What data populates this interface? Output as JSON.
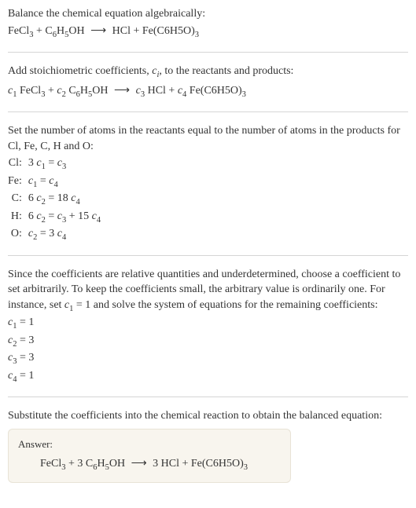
{
  "section1": {
    "title": "Balance the chemical equation algebraically:",
    "eq_left1": "FeCl",
    "eq_sub1": "3",
    "eq_plus1": " + C",
    "eq_sub2": "6",
    "eq_h": "H",
    "eq_sub3": "5",
    "eq_oh": "OH ",
    "arrow": "⟶",
    "eq_right1": " HCl + Fe(C6H5O)",
    "eq_sub4": "3"
  },
  "section2": {
    "text_a": "Add stoichiometric coefficients, ",
    "ci": "c",
    "ci_sub": "i",
    "text_b": ", to the reactants and products:",
    "c1": "c",
    "s1": "1",
    "fecl": " FeCl",
    "fecl_sub": "3",
    "plus1": " + ",
    "c2": "c",
    "s2": "2",
    "phenol_a": " C",
    "phenol_sub1": "6",
    "phenol_b": "H",
    "phenol_sub2": "5",
    "phenol_c": "OH ",
    "arrow": "⟶",
    "sp": " ",
    "c3": "c",
    "s3": "3",
    "hcl": " HCl + ",
    "c4": "c",
    "s4": "4",
    "prod": " Fe(C6H5O)",
    "prod_sub": "3"
  },
  "section3": {
    "text": "Set the number of atoms in the reactants equal to the number of atoms in the products for Cl, Fe, C, H and O:",
    "rows": [
      {
        "label": "Cl:",
        "eq_a": "3 ",
        "c1": "c",
        "s1": "1",
        "eq_b": " = ",
        "c2": "c",
        "s2": "3"
      },
      {
        "label": "Fe:",
        "eq_a": "",
        "c1": "c",
        "s1": "1",
        "eq_b": " = ",
        "c2": "c",
        "s2": "4"
      },
      {
        "label": "C:",
        "eq_a": "6 ",
        "c1": "c",
        "s1": "2",
        "eq_b": " = 18 ",
        "c2": "c",
        "s2": "4"
      },
      {
        "label": "H:",
        "eq_a": "6 ",
        "c1": "c",
        "s1": "2",
        "eq_b": " = ",
        "c2": "c",
        "s2": "3",
        "eq_c": " + 15 ",
        "c3": "c",
        "s3": "4"
      },
      {
        "label": "O:",
        "eq_a": "",
        "c1": "c",
        "s1": "2",
        "eq_b": " = 3 ",
        "c2": "c",
        "s2": "4"
      }
    ]
  },
  "section4": {
    "text_a": "Since the coefficients are relative quantities and underdetermined, choose a coefficient to set arbitrarily. To keep the coefficients small, the arbitrary value is ordinarily one. For instance, set ",
    "c1": "c",
    "s1": "1",
    "text_b": " = 1 and solve the system of equations for the remaining coefficients:",
    "coeffs": [
      {
        "c": "c",
        "s": "1",
        "val": " = 1"
      },
      {
        "c": "c",
        "s": "2",
        "val": " = 3"
      },
      {
        "c": "c",
        "s": "3",
        "val": " = 3"
      },
      {
        "c": "c",
        "s": "4",
        "val": " = 1"
      }
    ]
  },
  "section5": {
    "text": "Substitute the coefficients into the chemical reaction to obtain the balanced equation:"
  },
  "answer": {
    "label": "Answer:",
    "fecl": "FeCl",
    "fecl_sub": "3",
    "mid1": " + 3 C",
    "sub6": "6",
    "h": "H",
    "sub5": "5",
    "oh": "OH ",
    "arrow": "⟶",
    "mid2": " 3 HCl + Fe(C6H5O)",
    "sub3": "3"
  }
}
